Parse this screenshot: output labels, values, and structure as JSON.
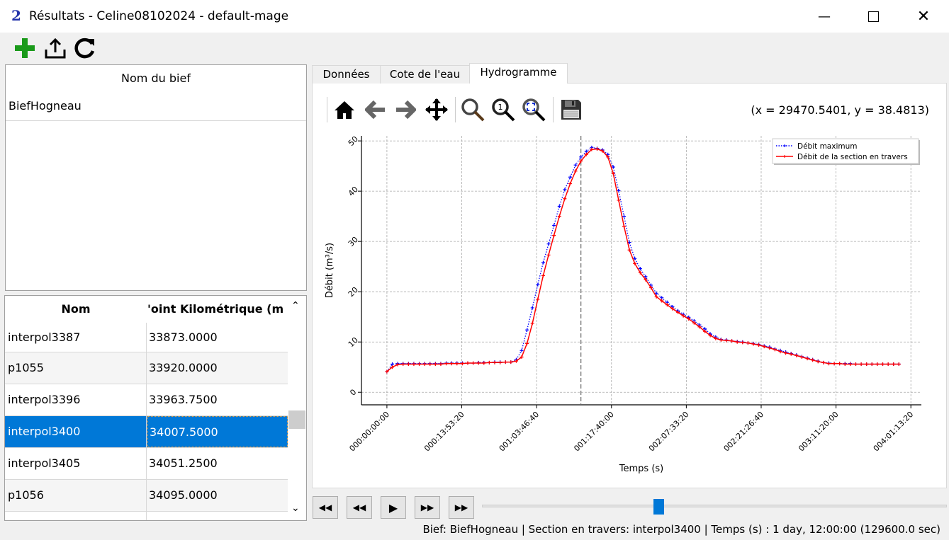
{
  "window": {
    "title": "Résultats - Celine08102024 - default-mage",
    "app_icon": "pamhyr2-logo"
  },
  "toolbar": {
    "icons": [
      "add-icon",
      "export-icon",
      "reload-icon"
    ]
  },
  "bief_list": {
    "header": "Nom du bief",
    "items": [
      "BiefHogneau"
    ]
  },
  "sections_table": {
    "columns": [
      "Nom",
      "Point Kilométrique (m)"
    ],
    "header_visible_2": "'oint Kilométrique (m",
    "rows": [
      {
        "name": "interpol3387",
        "pk": "33873.0000"
      },
      {
        "name": "p1055",
        "pk": "33920.0000"
      },
      {
        "name": "interpol3396",
        "pk": "33963.7500"
      },
      {
        "name": "interpol3400",
        "pk": "34007.5000",
        "selected": true
      },
      {
        "name": "interpol3405",
        "pk": "34051.2500"
      },
      {
        "name": "p1056",
        "pk": "34095.0000"
      }
    ]
  },
  "tabs": [
    {
      "label": "Données"
    },
    {
      "label": "Cote de l'eau"
    },
    {
      "label": "Hydrogramme",
      "active": true
    }
  ],
  "plot_toolbar": {
    "icons": [
      "home-icon",
      "back-icon",
      "forward-icon",
      "pan-icon",
      "zoom-icon",
      "zoom-1-icon",
      "zoom-fit-icon",
      "save-icon"
    ],
    "coords": "(x = 29470.5401,    y = 38.4813)"
  },
  "chart_data": {
    "type": "line",
    "xlabel": "Temps (s)",
    "ylabel": "Débit (m³/s)",
    "xlim": [
      -17000,
      357000
    ],
    "ylim": [
      -2.5,
      51
    ],
    "x_ticks": [
      0,
      50000,
      100000,
      150000,
      200000,
      250000,
      300000,
      350000
    ],
    "x_tick_labels": [
      "000:00:00:00",
      "000:13:53:20",
      "001:03:46:40",
      "001:17:40:00",
      "002:07:33:20",
      "002:21:26:40",
      "003:11:20:00",
      "004:01:13:20"
    ],
    "y_ticks": [
      0,
      10,
      20,
      30,
      40,
      50
    ],
    "y_tick_labels": [
      "0",
      "10",
      "20",
      "30",
      "40",
      "50"
    ],
    "grid": true,
    "legend_position": "top-right",
    "current_time": 129600,
    "x": [
      0,
      3600,
      7200,
      10800,
      14400,
      18000,
      21600,
      25200,
      28800,
      32400,
      36000,
      39600,
      43200,
      46800,
      50400,
      54000,
      57600,
      61200,
      64800,
      68400,
      72000,
      75600,
      79200,
      82800,
      86400,
      90000,
      93600,
      97200,
      100800,
      104400,
      108000,
      111600,
      115200,
      118800,
      122400,
      126000,
      129600,
      133200,
      136800,
      140400,
      144000,
      147600,
      151200,
      154800,
      158400,
      162000,
      165600,
      169200,
      172800,
      176400,
      180000,
      183600,
      187200,
      190800,
      194400,
      198000,
      201600,
      205200,
      208800,
      212400,
      216000,
      219600,
      223200,
      226800,
      230400,
      234000,
      237600,
      241200,
      244800,
      248400,
      252000,
      255600,
      259200,
      262800,
      266400,
      270000,
      273600,
      277200,
      280800,
      284400,
      288000,
      291600,
      295200,
      298800,
      302400,
      306000,
      309600,
      313200,
      316800,
      320400,
      324000,
      327600,
      331200,
      334800,
      338400,
      342000
    ],
    "series": [
      {
        "name": "Débit maximum",
        "color": "#0000ff",
        "style": "dotted",
        "values": [
          4.1,
          5.6,
          5.7,
          5.7,
          5.7,
          5.7,
          5.7,
          5.7,
          5.7,
          5.7,
          5.7,
          5.8,
          5.8,
          5.8,
          5.8,
          5.8,
          5.8,
          5.9,
          5.9,
          5.9,
          6.0,
          6.0,
          6.0,
          6.0,
          6.5,
          8.3,
          12.4,
          16.8,
          21.4,
          25.8,
          29.5,
          33.2,
          37.0,
          40.3,
          42.8,
          45.2,
          46.8,
          47.9,
          48.7,
          48.5,
          48.2,
          47.3,
          44.8,
          40.1,
          35.0,
          29.8,
          26.6,
          24.6,
          23.0,
          21.3,
          19.7,
          18.8,
          17.9,
          17.0,
          16.2,
          15.5,
          14.9,
          14.2,
          13.4,
          12.6,
          11.6,
          11.0,
          10.5,
          10.4,
          10.2,
          10.1,
          10.0,
          9.8,
          9.7,
          9.5,
          9.2,
          9.0,
          8.6,
          8.3,
          8.0,
          7.7,
          7.4,
          7.1,
          6.8,
          6.5,
          6.2,
          5.9,
          5.8,
          5.7,
          5.7,
          5.7,
          5.7,
          5.6,
          5.6,
          5.6,
          5.6,
          5.6,
          5.6,
          5.6,
          5.6,
          5.6
        ]
      },
      {
        "name": "Débit de la section en travers",
        "color": "#ff0000",
        "style": "solid",
        "values": [
          4.1,
          5.0,
          5.5,
          5.6,
          5.6,
          5.6,
          5.6,
          5.6,
          5.6,
          5.6,
          5.6,
          5.7,
          5.7,
          5.7,
          5.7,
          5.8,
          5.8,
          5.8,
          5.8,
          5.9,
          5.9,
          5.9,
          6.0,
          6.0,
          6.2,
          7.0,
          9.7,
          13.7,
          18.5,
          23.2,
          27.3,
          31.2,
          35.0,
          38.5,
          41.5,
          44.0,
          46.0,
          47.3,
          48.3,
          48.4,
          48.0,
          46.8,
          43.5,
          38.2,
          33.0,
          28.3,
          25.6,
          23.8,
          22.4,
          20.8,
          19.0,
          18.2,
          17.4,
          16.6,
          15.9,
          15.2,
          14.6,
          13.8,
          13.0,
          12.1,
          11.3,
          10.7,
          10.4,
          10.3,
          10.2,
          10.0,
          9.9,
          9.8,
          9.6,
          9.4,
          9.1,
          8.8,
          8.5,
          8.1,
          7.8,
          7.6,
          7.3,
          7.0,
          6.7,
          6.4,
          6.1,
          5.9,
          5.7,
          5.7,
          5.7,
          5.6,
          5.6,
          5.6,
          5.6,
          5.6,
          5.6,
          5.6,
          5.6,
          5.6,
          5.6,
          5.6
        ]
      }
    ]
  },
  "playback": {
    "buttons": [
      "first-icon",
      "rewind-icon",
      "play-icon",
      "fast-forward-icon",
      "last-icon"
    ],
    "slider_fraction": 0.379
  },
  "status": "Bief: BiefHogneau | Section en travers: interpol3400 | Temps (s) : 1 day, 12:00:00 (129600.0 sec)"
}
